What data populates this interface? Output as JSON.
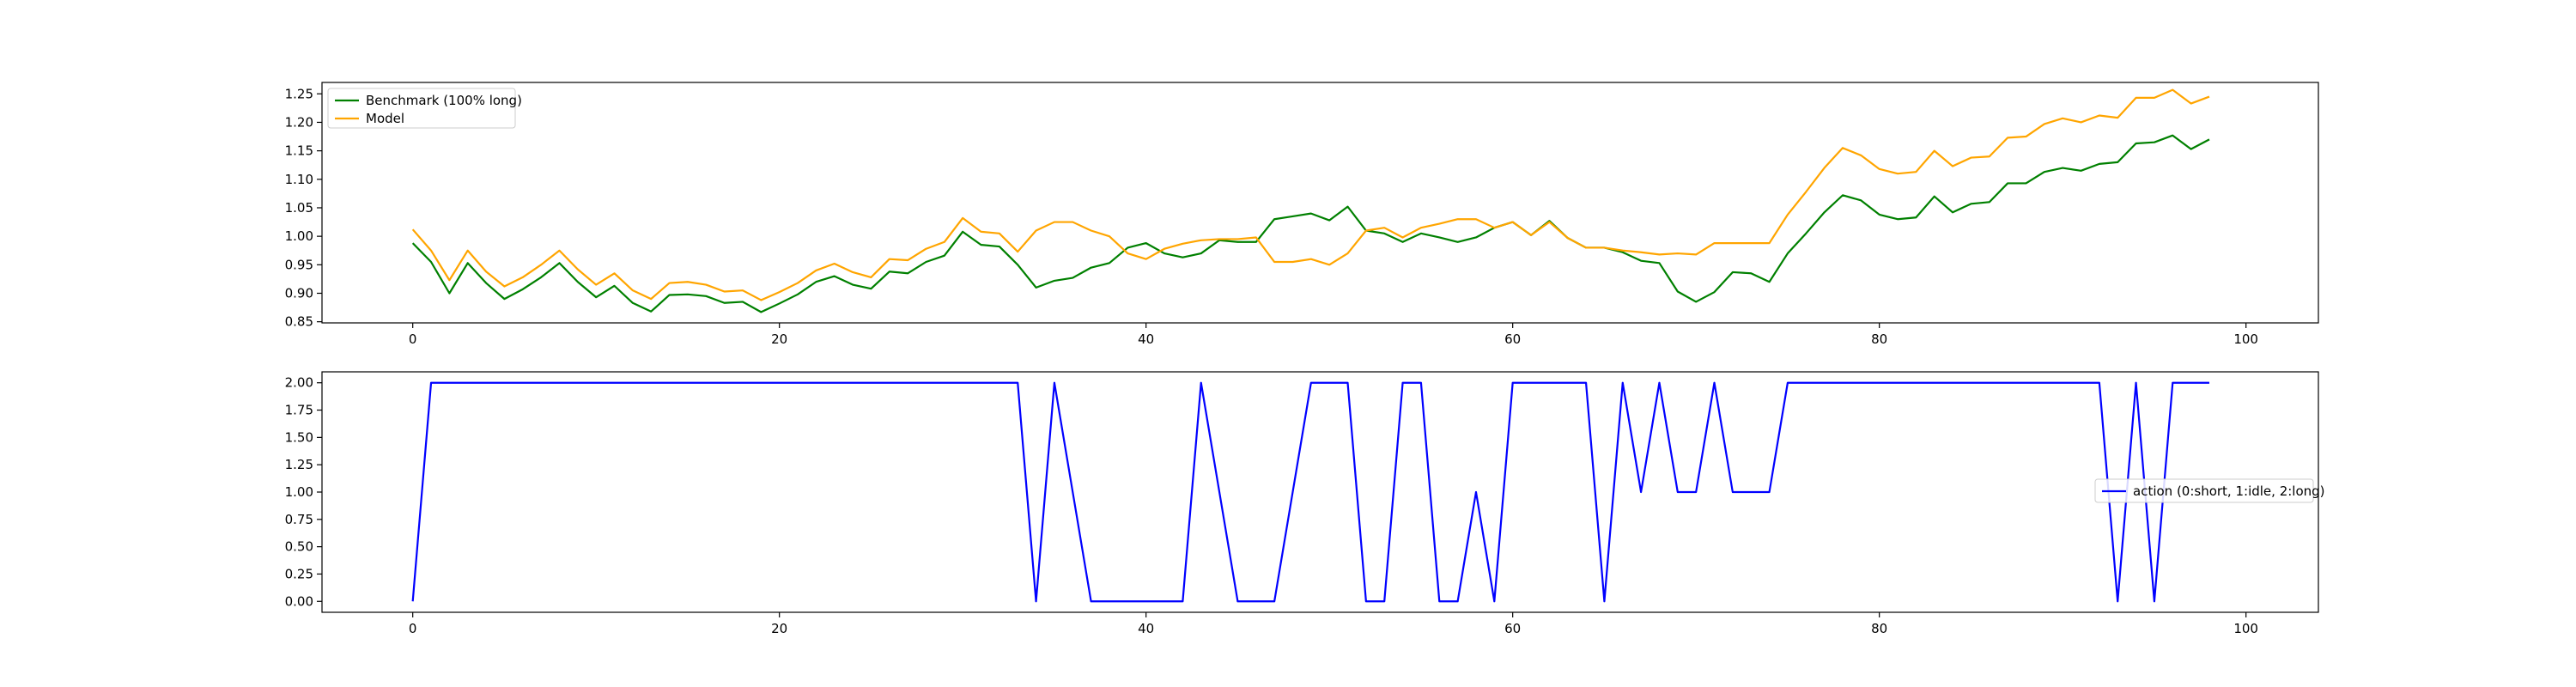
{
  "chart_data": [
    {
      "type": "line",
      "xlim": [
        -4.95,
        103.95
      ],
      "ylim": [
        0.848,
        1.27
      ],
      "xticks": [
        0,
        20,
        40,
        60,
        80,
        100
      ],
      "xtick_labels": [
        "0",
        "20",
        "40",
        "60",
        "80",
        "100"
      ],
      "yticks": [
        0.85,
        0.9,
        0.95,
        1.0,
        1.05,
        1.1,
        1.15,
        1.2,
        1.25
      ],
      "ytick_labels": [
        "0.85",
        "0.90",
        "0.95",
        "1.00",
        "1.05",
        "1.10",
        "1.15",
        "1.20",
        "1.25"
      ],
      "grid": false,
      "legend_position": "upper left",
      "series": [
        {
          "name": "Benchmark (100% long)",
          "color": "#008000",
          "values": [
            0.988,
            0.955,
            0.9,
            0.953,
            0.918,
            0.89,
            0.907,
            0.928,
            0.953,
            0.92,
            0.893,
            0.913,
            0.883,
            0.868,
            0.897,
            0.898,
            0.895,
            0.883,
            0.885,
            0.867,
            0.882,
            0.898,
            0.92,
            0.93,
            0.915,
            0.908,
            0.938,
            0.935,
            0.955,
            0.966,
            1.008,
            0.985,
            0.982,
            0.95,
            0.91,
            0.922,
            0.927,
            0.945,
            0.953,
            0.98,
            0.988,
            0.97,
            0.963,
            0.97,
            0.993,
            0.99,
            0.99,
            1.03,
            1.035,
            1.04,
            1.028,
            1.052,
            1.01,
            1.005,
            0.99,
            1.005,
            0.998,
            0.99,
            0.998,
            1.015,
            1.025,
            1.002,
            1.027,
            0.997,
            0.98,
            0.98,
            0.972,
            0.957,
            0.953,
            0.903,
            0.885,
            0.902,
            0.937,
            0.935,
            0.92,
            0.97,
            1.005,
            1.042,
            1.072,
            1.063,
            1.038,
            1.03,
            1.033,
            1.07,
            1.042,
            1.057,
            1.06,
            1.093,
            1.093,
            1.113,
            1.12,
            1.115,
            1.127,
            1.13,
            1.163,
            1.165,
            1.177,
            1.153,
            1.17
          ]
        },
        {
          "name": "Model",
          "color": "#ffa500",
          "values": [
            1.012,
            0.975,
            0.923,
            0.975,
            0.938,
            0.912,
            0.928,
            0.95,
            0.975,
            0.942,
            0.915,
            0.935,
            0.905,
            0.89,
            0.918,
            0.92,
            0.915,
            0.903,
            0.905,
            0.888,
            0.902,
            0.918,
            0.94,
            0.952,
            0.937,
            0.928,
            0.96,
            0.958,
            0.978,
            0.99,
            1.032,
            1.008,
            1.005,
            0.973,
            1.01,
            1.025,
            1.025,
            1.01,
            1.0,
            0.97,
            0.96,
            0.978,
            0.987,
            0.993,
            0.995,
            0.995,
            0.998,
            0.955,
            0.955,
            0.96,
            0.95,
            0.97,
            1.01,
            1.015,
            0.998,
            1.015,
            1.022,
            1.03,
            1.03,
            1.015,
            1.025,
            1.002,
            1.025,
            0.997,
            0.98,
            0.98,
            0.975,
            0.972,
            0.968,
            0.97,
            0.968,
            0.988,
            0.988,
            0.988,
            0.988,
            1.038,
            1.078,
            1.12,
            1.155,
            1.142,
            1.118,
            1.11,
            1.113,
            1.15,
            1.123,
            1.138,
            1.14,
            1.173,
            1.175,
            1.197,
            1.207,
            1.2,
            1.212,
            1.208,
            1.243,
            1.243,
            1.257,
            1.233,
            1.245
          ]
        }
      ]
    },
    {
      "type": "line",
      "xlim": [
        -4.95,
        103.95
      ],
      "ylim": [
        -0.1,
        2.1
      ],
      "xticks": [
        0,
        20,
        40,
        60,
        80,
        100
      ],
      "xtick_labels": [
        "0",
        "20",
        "40",
        "60",
        "80",
        "100"
      ],
      "yticks": [
        0.0,
        0.25,
        0.5,
        0.75,
        1.0,
        1.25,
        1.5,
        1.75,
        2.0
      ],
      "ytick_labels": [
        "0.00",
        "0.25",
        "0.50",
        "0.75",
        "1.00",
        "1.25",
        "1.50",
        "1.75",
        "2.00"
      ],
      "grid": false,
      "legend_position": "center right",
      "series": [
        {
          "name": "action (0:short, 1:idle, 2:long)",
          "color": "#0000ff",
          "values": [
            0,
            2,
            2,
            2,
            2,
            2,
            2,
            2,
            2,
            2,
            2,
            2,
            2,
            2,
            2,
            2,
            2,
            2,
            2,
            2,
            2,
            2,
            2,
            2,
            2,
            2,
            2,
            2,
            2,
            2,
            2,
            2,
            2,
            2,
            0,
            2,
            1,
            0,
            0,
            0,
            0,
            0,
            0,
            2,
            1,
            0,
            0,
            0,
            1,
            2,
            2,
            2,
            0,
            0,
            2,
            2,
            0,
            0,
            1,
            0,
            2,
            2,
            2,
            2,
            2,
            0,
            2,
            1,
            2,
            1,
            1,
            2,
            1,
            1,
            1,
            2,
            2,
            2,
            2,
            2,
            2,
            2,
            2,
            2,
            2,
            2,
            2,
            2,
            2,
            2,
            2,
            2,
            2,
            0,
            2,
            0,
            2,
            2,
            2
          ]
        }
      ]
    }
  ]
}
